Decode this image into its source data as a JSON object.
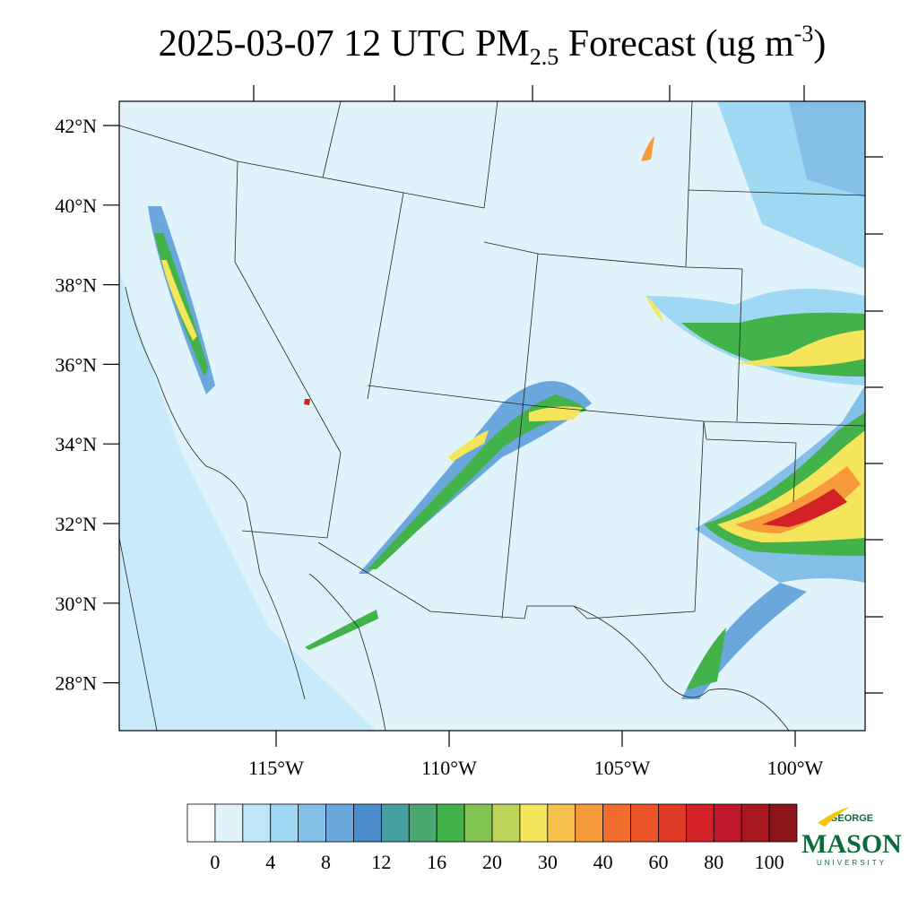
{
  "header": {
    "title_main": "2025-03-07 12 UTC PM",
    "title_sub": "2.5",
    "title_after": " Forecast (ug m",
    "title_sup": "-3",
    "title_end": ")"
  },
  "map": {
    "lat_ticks": [
      {
        "value": 42,
        "label": "42°N"
      },
      {
        "value": 40,
        "label": "40°N"
      },
      {
        "value": 38,
        "label": "38°N"
      },
      {
        "value": 36,
        "label": "36°N"
      },
      {
        "value": 34,
        "label": "34°N"
      },
      {
        "value": 32,
        "label": "32°N"
      },
      {
        "value": 30,
        "label": "30°N"
      },
      {
        "value": 28,
        "label": "28°N"
      }
    ],
    "lon_ticks": [
      {
        "value": -115,
        "label": "115°W"
      },
      {
        "value": -110,
        "label": "110°W"
      },
      {
        "value": -105,
        "label": "105°W"
      },
      {
        "value": -100,
        "label": "100°W"
      }
    ],
    "lat_range": [
      26.8,
      42.6
    ],
    "lon_range": [
      -119.5,
      -98
    ]
  },
  "colorbar": {
    "colors": [
      "#ffffff",
      "#e0f3fb",
      "#bfe6f7",
      "#9fd8f2",
      "#83bfe6",
      "#69a7dc",
      "#4a8ccc",
      "#46a0a0",
      "#48a870",
      "#43b24a",
      "#82c452",
      "#bcd45a",
      "#f4e55a",
      "#f8c04c",
      "#f79a3c",
      "#f16d2e",
      "#eb5428",
      "#e03a26",
      "#d22127",
      "#c0182a",
      "#a8181f",
      "#8b1418"
    ],
    "labels": [
      0,
      4,
      8,
      12,
      16,
      20,
      30,
      40,
      60,
      80,
      100
    ]
  },
  "logo": {
    "top": "GEORGE",
    "middle": "MASON",
    "bottom": "UNIVERSITY"
  }
}
